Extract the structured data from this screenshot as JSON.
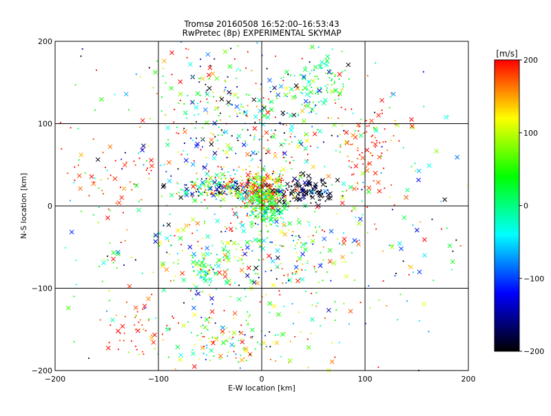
{
  "chart_data": {
    "type": "scatter",
    "title": "Tromsø 20160508 16:52:00–16:53:43",
    "subtitle": "RwPretec (8p) EXPERIMENTAL SKYMAP",
    "xlabel": "E-W location [km]",
    "ylabel": "N-S location [km]",
    "xlim": [
      -200,
      200
    ],
    "ylim": [
      -200,
      200
    ],
    "x_ticks": [
      "−200",
      "−100",
      "0",
      "100",
      "200"
    ],
    "y_ticks": [
      "−200",
      "−100",
      "0",
      "100",
      "200"
    ],
    "x_tick_values": [
      -200,
      -100,
      0,
      100,
      200
    ],
    "y_tick_values": [
      -200,
      -100,
      0,
      100,
      200
    ],
    "grid": true,
    "colorbar": {
      "label": "[m/s]",
      "range": [
        -200,
        200
      ],
      "tick_values": [
        200,
        100,
        0,
        -100,
        -200
      ],
      "tick_labels": [
        "200",
        "100",
        "0",
        "−100",
        "−200"
      ],
      "colors": [
        "#ff0000",
        "#ffff00",
        "#00ff00",
        "#00ffff",
        "#0000ff",
        "#000000"
      ],
      "placement": "right"
    },
    "clusters": [
      {
        "cx": 0,
        "cy": 20,
        "sx": 12,
        "sy": 12,
        "n": 260,
        "v": 160,
        "vs": 60
      },
      {
        "cx": 5,
        "cy": 0,
        "sx": 10,
        "sy": 14,
        "n": 220,
        "v": 20,
        "vs": 60
      },
      {
        "cx": -45,
        "cy": 22,
        "sx": 18,
        "sy": 8,
        "n": 180,
        "v": 0,
        "vs": 170
      },
      {
        "cx": 45,
        "cy": 18,
        "sx": 14,
        "sy": 8,
        "n": 140,
        "v": -190,
        "vs": 20
      },
      {
        "cx": 55,
        "cy": 150,
        "sx": 14,
        "sy": 18,
        "n": 90,
        "v": 20,
        "vs": 40
      },
      {
        "cx": 105,
        "cy": 70,
        "sx": 14,
        "sy": 30,
        "n": 70,
        "v": 190,
        "vs": 20
      },
      {
        "cx": -55,
        "cy": -75,
        "sx": 8,
        "sy": 10,
        "n": 60,
        "v": 10,
        "vs": 60
      },
      {
        "cx": -30,
        "cy": -165,
        "sx": 35,
        "sy": 18,
        "n": 130,
        "v": 80,
        "vs": 110
      },
      {
        "cx": 0,
        "cy": 95,
        "sx": 45,
        "sy": 40,
        "n": 260,
        "v": 0,
        "vs": 140
      },
      {
        "cx": 0,
        "cy": -60,
        "sx": 55,
        "sy": 35,
        "n": 260,
        "v": 40,
        "vs": 120
      },
      {
        "cx": -140,
        "cy": 30,
        "sx": 25,
        "sy": 20,
        "n": 40,
        "v": 190,
        "vs": 20
      },
      {
        "cx": -60,
        "cy": 150,
        "sx": 30,
        "sy": 30,
        "n": 70,
        "v": 40,
        "vs": 150
      },
      {
        "cx": -120,
        "cy": -150,
        "sx": 15,
        "sy": 15,
        "n": 40,
        "v": 190,
        "vs": 20
      },
      {
        "cx": 0,
        "cy": 0,
        "sx": 120,
        "sy": 110,
        "n": 520,
        "v": 40,
        "vs": 130
      }
    ],
    "outliers": [
      {
        "x": -175,
        "y": 182,
        "v": -200
      },
      {
        "x": -185,
        "y": 95,
        "v": 200
      },
      {
        "x": 185,
        "y": -55,
        "v": -200
      },
      {
        "x": 130,
        "y": -82,
        "v": -200
      },
      {
        "x": 135,
        "y": -52,
        "v": -100
      },
      {
        "x": 152,
        "y": -200,
        "v": -200
      },
      {
        "x": -160,
        "y": 165,
        "v": 200
      },
      {
        "x": 145,
        "y": 105,
        "v": 200
      }
    ]
  }
}
